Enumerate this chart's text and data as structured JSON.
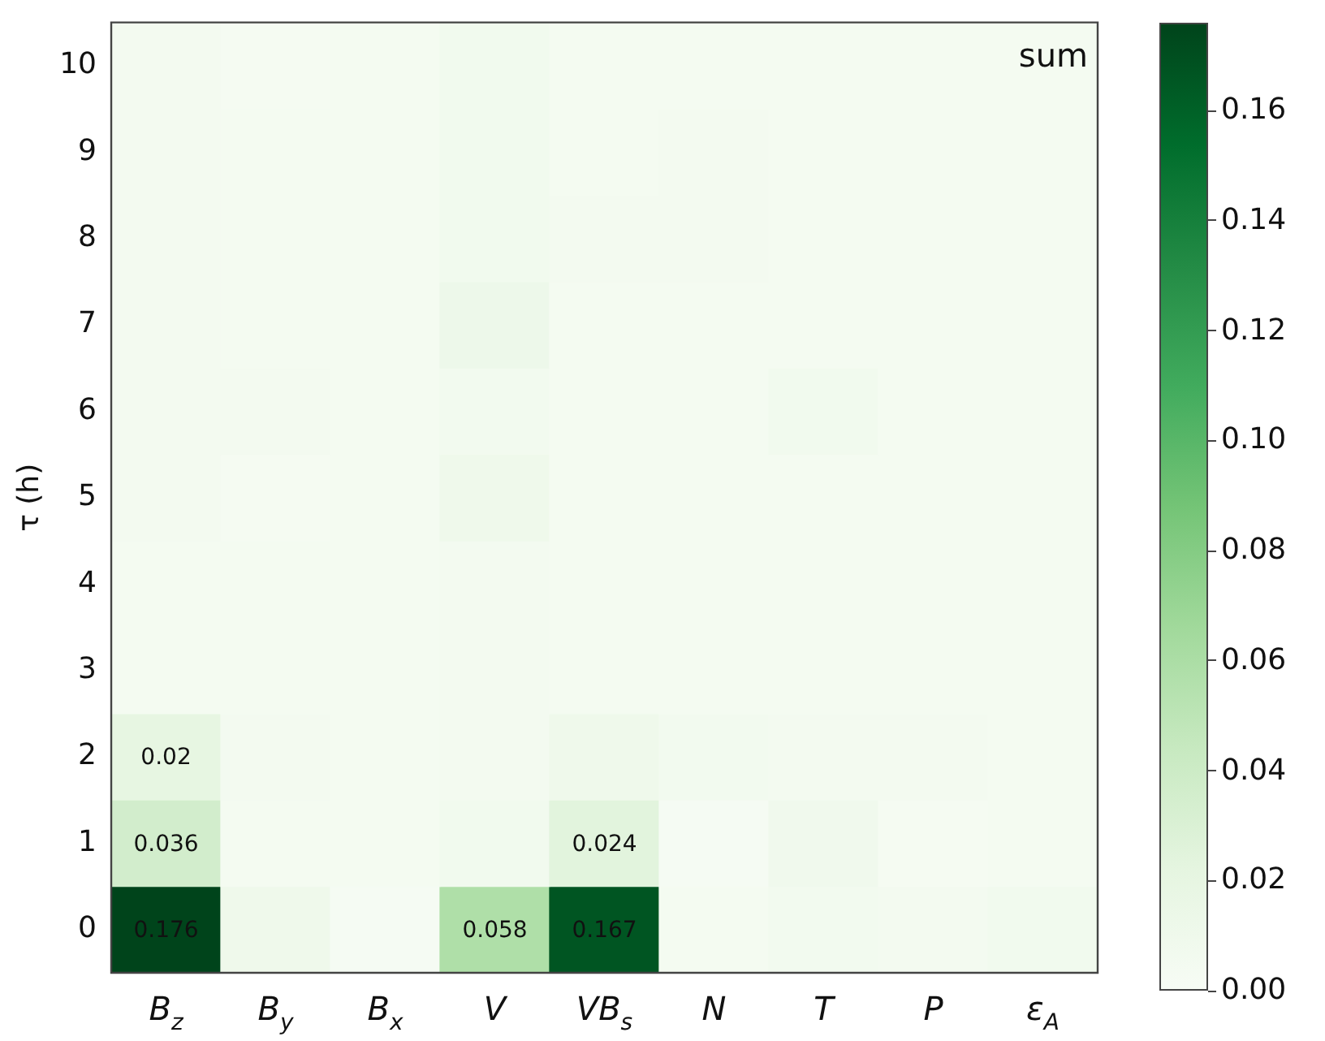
{
  "chart_data": {
    "type": "heatmap",
    "ylabel": "τ (h)",
    "annotations": [
      "sum"
    ],
    "categories": [
      "B$_{z}$",
      "B$_{y}$",
      "B$_{x}$",
      "V",
      "VB$_{s}$",
      "N",
      "T",
      "P",
      "ε$_{A}$"
    ],
    "y_categories": [
      "10",
      "9",
      "8",
      "7",
      "6",
      "5",
      "4",
      "3",
      "2",
      "1",
      "0"
    ],
    "cells": [
      [
        0.005,
        0.003,
        0.004,
        0.007,
        0.004,
        0.004,
        0.004,
        0.004,
        0.004
      ],
      [
        0.005,
        0.004,
        0.004,
        0.007,
        0.004,
        0.005,
        0.004,
        0.004,
        0.004
      ],
      [
        0.005,
        0.004,
        0.004,
        0.007,
        0.005,
        0.005,
        0.004,
        0.004,
        0.004
      ],
      [
        0.005,
        0.004,
        0.004,
        0.012,
        0.004,
        0.004,
        0.004,
        0.004,
        0.004
      ],
      [
        0.005,
        0.005,
        0.004,
        0.006,
        0.004,
        0.004,
        0.007,
        0.004,
        0.004
      ],
      [
        0.005,
        0.003,
        0.004,
        0.01,
        0.004,
        0.004,
        0.004,
        0.004,
        0.004
      ],
      [
        0.004,
        0.004,
        0.004,
        0.005,
        0.004,
        0.004,
        0.004,
        0.004,
        0.004
      ],
      [
        0.004,
        0.004,
        0.004,
        0.005,
        0.004,
        0.004,
        0.004,
        0.004,
        0.004
      ],
      [
        0.02,
        0.005,
        0.004,
        0.005,
        0.01,
        0.006,
        0.005,
        0.005,
        0.004
      ],
      [
        0.036,
        0.004,
        0.004,
        0.007,
        0.024,
        0.002,
        0.008,
        0.003,
        0.004
      ],
      [
        0.176,
        0.01,
        0.002,
        0.058,
        0.167,
        0.004,
        0.006,
        0.005,
        0.007
      ]
    ],
    "cell_labels": [
      [
        null,
        null,
        null,
        null,
        null,
        null,
        null,
        null,
        null
      ],
      [
        null,
        null,
        null,
        null,
        null,
        null,
        null,
        null,
        null
      ],
      [
        null,
        null,
        null,
        null,
        null,
        null,
        null,
        null,
        null
      ],
      [
        null,
        null,
        null,
        null,
        null,
        null,
        null,
        null,
        null
      ],
      [
        null,
        null,
        null,
        null,
        null,
        null,
        null,
        null,
        null
      ],
      [
        null,
        null,
        null,
        null,
        null,
        null,
        null,
        null,
        null
      ],
      [
        null,
        null,
        null,
        null,
        null,
        null,
        null,
        null,
        null
      ],
      [
        null,
        null,
        null,
        null,
        null,
        null,
        null,
        null,
        null
      ],
      [
        "0.02",
        null,
        null,
        null,
        null,
        null,
        null,
        null,
        null
      ],
      [
        "0.036",
        null,
        null,
        null,
        "0.024",
        null,
        null,
        null,
        null
      ],
      [
        "0.176",
        null,
        null,
        "0.058",
        "0.167",
        null,
        null,
        null,
        null
      ]
    ],
    "clim": [
      0,
      0.176
    ],
    "cticks": [
      {
        "value": 0,
        "label": "0.00"
      },
      {
        "value": 0.02,
        "label": "0.02"
      },
      {
        "value": 0.04,
        "label": "0.04"
      },
      {
        "value": 0.06,
        "label": "0.06"
      },
      {
        "value": 0.08,
        "label": "0.08"
      },
      {
        "value": 0.1,
        "label": "0.10"
      },
      {
        "value": 0.12,
        "label": "0.12"
      },
      {
        "value": 0.14,
        "label": "0.14"
      },
      {
        "value": 0.16,
        "label": "0.16"
      }
    ]
  }
}
